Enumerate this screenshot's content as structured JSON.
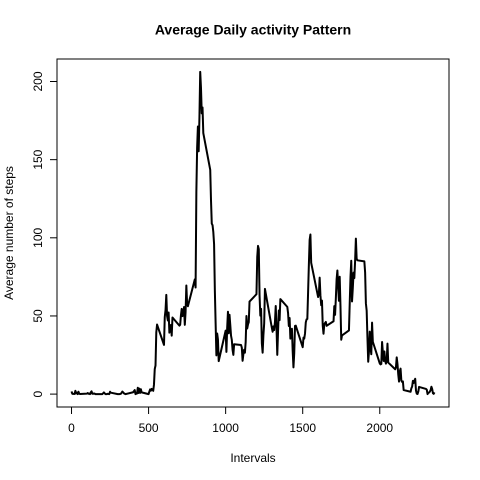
{
  "chart_data": {
    "type": "line",
    "title": "Average Daily activity Pattern",
    "x_label": "Intervals",
    "y_label": "Average number of steps",
    "xlim": [
      -94.2,
      2449.2
    ],
    "ylim": [
      -8.25,
      214.4
    ],
    "xticks": [
      0,
      500,
      1000,
      1500,
      2000
    ],
    "yticks": [
      0,
      50,
      100,
      150,
      200
    ],
    "series": [
      {
        "color": "#000000",
        "x": [
          0,
          5,
          10,
          15,
          20,
          25,
          30,
          35,
          40,
          45,
          50,
          55,
          100,
          105,
          110,
          115,
          120,
          125,
          130,
          135,
          140,
          145,
          150,
          155,
          200,
          210,
          220,
          230,
          235,
          245,
          250,
          255,
          300,
          310,
          320,
          330,
          340,
          350,
          400,
          410,
          415,
          420,
          425,
          430,
          435,
          440,
          445,
          450,
          455,
          500,
          505,
          510,
          515,
          520,
          525,
          530,
          535,
          540,
          545,
          550,
          555,
          600,
          605,
          610,
          615,
          620,
          625,
          630,
          635,
          640,
          645,
          650,
          655,
          700,
          705,
          710,
          715,
          720,
          725,
          730,
          735,
          740,
          745,
          750,
          755,
          800,
          805,
          810,
          815,
          820,
          825,
          830,
          835,
          840,
          845,
          850,
          855,
          900,
          905,
          910,
          915,
          920,
          925,
          930,
          935,
          940,
          945,
          950,
          955,
          1000,
          1005,
          1010,
          1015,
          1020,
          1025,
          1030,
          1035,
          1040,
          1045,
          1050,
          1055,
          1100,
          1105,
          1110,
          1115,
          1120,
          1125,
          1130,
          1135,
          1140,
          1145,
          1150,
          1155,
          1200,
          1205,
          1210,
          1215,
          1220,
          1225,
          1230,
          1235,
          1240,
          1245,
          1250,
          1255,
          1300,
          1305,
          1310,
          1315,
          1320,
          1325,
          1330,
          1335,
          1340,
          1345,
          1350,
          1355,
          1400,
          1405,
          1410,
          1415,
          1420,
          1425,
          1430,
          1435,
          1440,
          1445,
          1450,
          1455,
          1500,
          1505,
          1510,
          1515,
          1520,
          1525,
          1530,
          1535,
          1540,
          1545,
          1550,
          1555,
          1600,
          1605,
          1610,
          1615,
          1620,
          1625,
          1630,
          1635,
          1640,
          1645,
          1650,
          1655,
          1700,
          1705,
          1710,
          1715,
          1720,
          1725,
          1730,
          1735,
          1740,
          1745,
          1750,
          1755,
          1800,
          1805,
          1810,
          1815,
          1820,
          1825,
          1830,
          1835,
          1840,
          1845,
          1850,
          1855,
          1900,
          1905,
          1910,
          1915,
          1920,
          1925,
          1930,
          1935,
          1940,
          1945,
          1950,
          1955,
          2000,
          2005,
          2010,
          2015,
          2020,
          2025,
          2030,
          2035,
          2040,
          2045,
          2050,
          2055,
          2100,
          2105,
          2110,
          2115,
          2120,
          2125,
          2130,
          2135,
          2140,
          2145,
          2150,
          2155,
          2200,
          2205,
          2210,
          2215,
          2220,
          2225,
          2230,
          2235,
          2240,
          2245,
          2250,
          2255,
          2300,
          2305,
          2310,
          2315,
          2320,
          2325,
          2330,
          2335,
          2340,
          2345,
          2350,
          2355
        ],
        "values": [
          1.7,
          0.3,
          0.1,
          0.2,
          0.1,
          2.1,
          0.5,
          0.9,
          0,
          1.5,
          0.3,
          0.1,
          0.3,
          0.7,
          0.2,
          0.3,
          0,
          1.1,
          1.8,
          0.2,
          0.2,
          0.4,
          0.3,
          0,
          0,
          1.1,
          0,
          0,
          0.2,
          0,
          1.5,
          0.9,
          0,
          0,
          0.2,
          1.6,
          0.5,
          0,
          1.2,
          2.6,
          0,
          0.3,
          0.4,
          4.1,
          0.7,
          3.5,
          0.8,
          3.1,
          1.1,
          0,
          1.6,
          3,
          2.2,
          3.3,
          3,
          2.1,
          6.1,
          16,
          18.3,
          39.5,
          44.5,
          31.5,
          49.3,
          53.8,
          63.5,
          50,
          47.1,
          52.2,
          39.3,
          44,
          44.2,
          37.4,
          49,
          43.8,
          44.4,
          50.5,
          54.5,
          49.9,
          51,
          55.7,
          44.3,
          52.3,
          69.5,
          57.8,
          56.2,
          73.4,
          68.2,
          129.4,
          157.5,
          171.2,
          155.4,
          177.3,
          206.2,
          195.9,
          179.6,
          183.4,
          167,
          143.5,
          124,
          109.1,
          108.1,
          103.7,
          95.9,
          66.2,
          45.2,
          24.8,
          38.8,
          35,
          21.1,
          40.6,
          27,
          42.4,
          52.7,
          38.9,
          50.8,
          44.3,
          37.4,
          34.7,
          28.3,
          25.1,
          31.9,
          31.4,
          29.7,
          21.3,
          25.5,
          28.4,
          26.5,
          33.4,
          50,
          42,
          44.6,
          46,
          59.2,
          63.9,
          87.7,
          94.8,
          92.8,
          63.4,
          50.2,
          54.5,
          32.4,
          26.5,
          37.7,
          45.1,
          67.3,
          42.3,
          39.9,
          43.3,
          41,
          46.2,
          56.4,
          42.8,
          25.1,
          40,
          53.5,
          47.3,
          60.8,
          55.8,
          51.9,
          43.6,
          48.7,
          35.5,
          37.5,
          41.8,
          27.5,
          17.1,
          26.1,
          43.6,
          43.8,
          30,
          36.1,
          35.5,
          38.8,
          45.9,
          47.8,
          48.1,
          65.3,
          82.9,
          98.7,
          102.1,
          84,
          62.1,
          64.1,
          74.5,
          63.2,
          56.9,
          59.8,
          43.9,
          38.6,
          44.7,
          45.5,
          46.2,
          43.7,
          46.6,
          56.3,
          50.7,
          61.2,
          73.4,
          79.1,
          68.9,
          59.7,
          75.1,
          56.5,
          34.8,
          37.5,
          40.7,
          58,
          74.7,
          85.3,
          59.3,
          67.8,
          77.7,
          74.2,
          85.3,
          99.5,
          86.6,
          85.6,
          84.9,
          77.8,
          58,
          53.4,
          36.3,
          20.7,
          27.4,
          40,
          30.2,
          25.5,
          45.7,
          33.5,
          19.6,
          19,
          19.3,
          33.3,
          26.8,
          21.2,
          27.3,
          21.3,
          19.5,
          21.3,
          32.3,
          20.2,
          15.9,
          17.2,
          23.5,
          19.2,
          12.5,
          8,
          14.7,
          16.3,
          8.7,
          7.8,
          8.1,
          2.6,
          1.5,
          3.7,
          4.8,
          8.5,
          7.1,
          8.7,
          9.8,
          2.2,
          0.3,
          0.1,
          1.6,
          4.6,
          3.3,
          2.8,
          0,
          0.8,
          1,
          1.6,
          2.6,
          4.7,
          3.3,
          0.6,
          0.2,
          1.1
        ]
      }
    ]
  }
}
